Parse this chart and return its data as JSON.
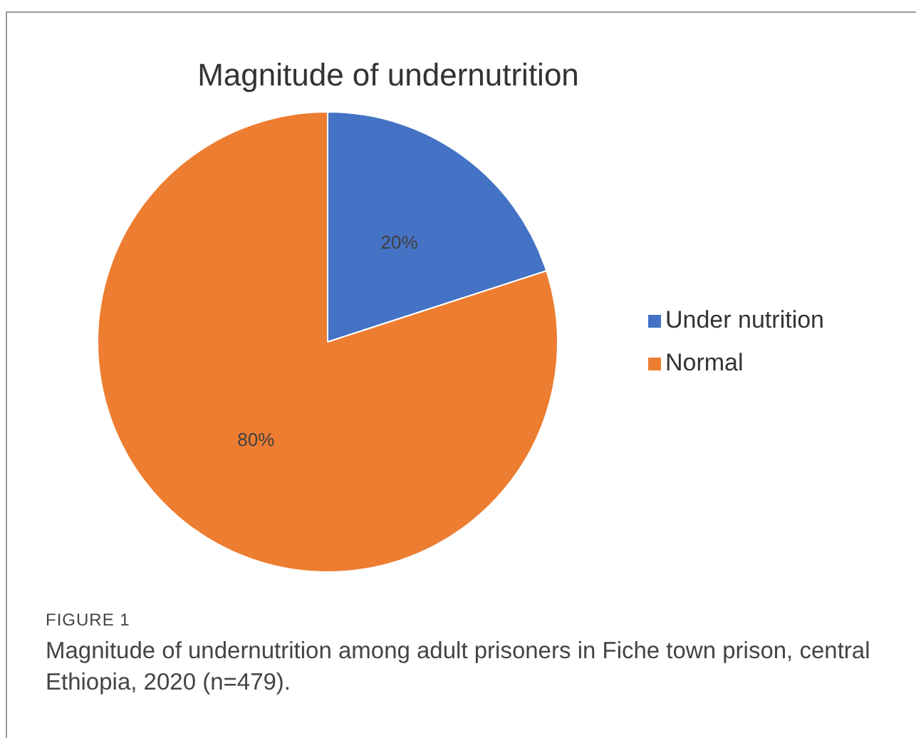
{
  "chart_data": {
    "type": "pie",
    "title": "Magnitude of undernutrition",
    "categories": [
      "Under nutrition",
      "Normal"
    ],
    "values": [
      20,
      80
    ],
    "colors": [
      "#4472c4",
      "#ed7d31"
    ],
    "value_labels": [
      "20%",
      "80%"
    ],
    "legend": "right",
    "annotations": [
      "FIGURE 1",
      "Magnitude of undernutrition among adult prisoners in Fiche town prison, central Ethiopia, 2020 (n=479)."
    ]
  }
}
